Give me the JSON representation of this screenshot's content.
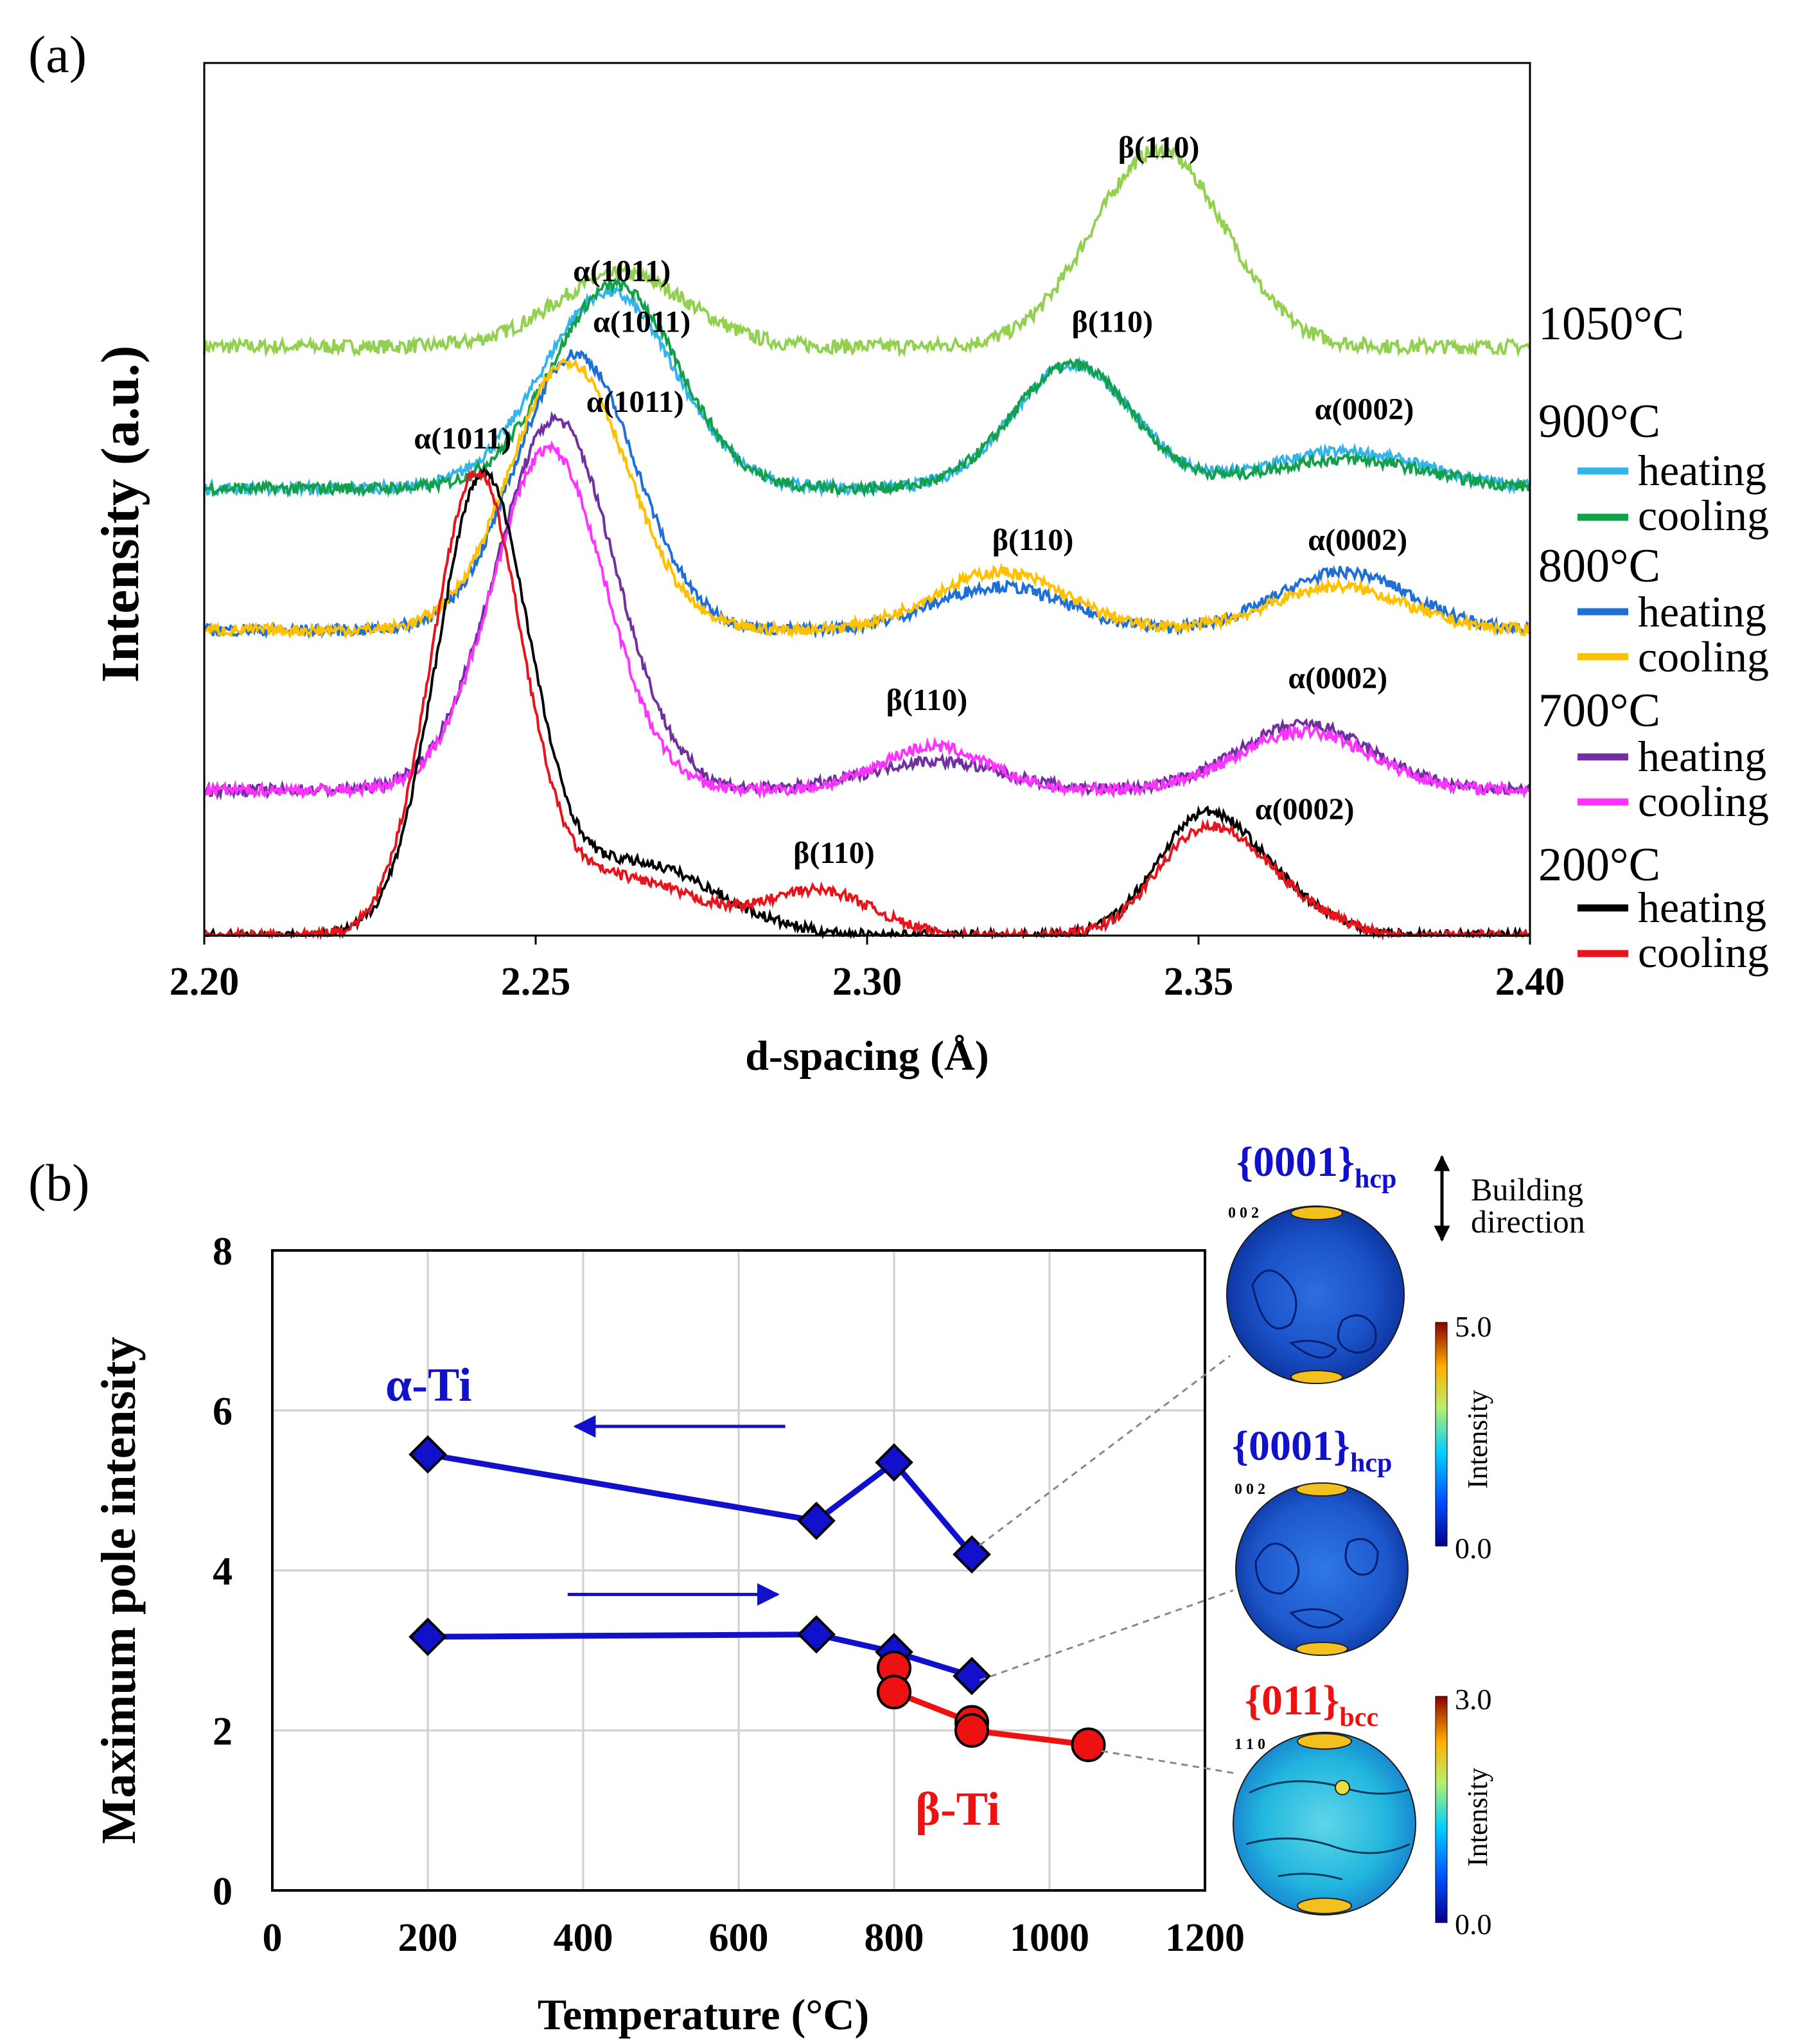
{
  "colors": {
    "h200": "#000000",
    "c200": "#e8141c",
    "h700": "#7030a0",
    "c700": "#ff33ff",
    "h800": "#1f6fd6",
    "c800": "#ffc000",
    "h900": "#33b5ea",
    "c900": "#12a04a",
    "s1050": "#92d050",
    "alpha": "#1111cc",
    "beta": "#ee1111",
    "grid": "#d0d0d0"
  },
  "chart_data": [
    {
      "type": "line",
      "panel_label": "(a)",
      "xlabel": "d-spacing (Å)",
      "ylabel": "Intensity (a.u.)",
      "xlim": [
        2.2,
        2.4
      ],
      "x_ticks": [
        "2.20",
        "2.25",
        "2.30",
        "2.35",
        "2.40"
      ],
      "x_tick_values": [
        2.2,
        2.25,
        2.3,
        2.35,
        2.4
      ],
      "ylim": [
        0,
        1.2
      ],
      "temperature_labels": [
        "1050°C",
        "900°C",
        "800°C",
        "700°C",
        "200°C"
      ],
      "legend_entries": [
        "heating",
        "cooling",
        "heating",
        "cooling",
        "heating",
        "cooling",
        "heating",
        "cooling"
      ],
      "series": [
        {
          "name": "1050°C",
          "color_key": "s1050",
          "base": 0.81,
          "noise": 0.01,
          "peaks": [
            [
              2.263,
              0.1,
              0.01
            ],
            [
              2.344,
              0.27,
              0.01
            ]
          ]
        },
        {
          "name": "900°C heating",
          "color_key": "h900",
          "base": 0.615,
          "noise": 0.008,
          "peaks": [
            [
              2.261,
              0.27,
              0.01
            ],
            [
              2.331,
              0.17,
              0.009
            ],
            [
              2.372,
              0.05,
              0.012
            ]
          ]
        },
        {
          "name": "900°C cooling",
          "color_key": "c900",
          "base": 0.615,
          "noise": 0.008,
          "peaks": [
            [
              2.262,
              0.28,
              0.0095
            ],
            [
              2.331,
              0.17,
              0.009
            ],
            [
              2.372,
              0.04,
              0.012
            ]
          ]
        },
        {
          "name": "800°C heating",
          "color_key": "h800",
          "base": 0.42,
          "noise": 0.008,
          "peaks": [
            [
              2.256,
              0.38,
              0.009
            ],
            [
              2.32,
              0.06,
              0.01
            ],
            [
              2.372,
              0.08,
              0.01
            ]
          ]
        },
        {
          "name": "800°C cooling",
          "color_key": "c800",
          "base": 0.42,
          "noise": 0.008,
          "peaks": [
            [
              2.255,
              0.37,
              0.0088
            ],
            [
              2.32,
              0.08,
              0.01
            ],
            [
              2.371,
              0.06,
              0.01
            ]
          ]
        },
        {
          "name": "700°C heating",
          "color_key": "h700",
          "base": 0.2,
          "noise": 0.008,
          "peaks": [
            [
              2.253,
              0.51,
              0.009
            ],
            [
              2.31,
              0.04,
              0.01
            ],
            [
              2.366,
              0.09,
              0.01
            ]
          ]
        },
        {
          "name": "700°C cooling",
          "color_key": "c700",
          "base": 0.2,
          "noise": 0.008,
          "peaks": [
            [
              2.252,
              0.47,
              0.0085
            ],
            [
              2.31,
              0.06,
              0.008
            ],
            [
              2.366,
              0.08,
              0.01
            ]
          ]
        },
        {
          "name": "200°C heating",
          "color_key": "h200",
          "base": 0.0,
          "noise": 0.007,
          "peaks": [
            [
              2.242,
              0.62,
              0.007
            ],
            [
              2.265,
              0.1,
              0.012
            ],
            [
              2.35,
              0.14,
              0.007
            ],
            [
              2.36,
              0.06,
              0.008
            ]
          ]
        },
        {
          "name": "200°C cooling",
          "color_key": "c200",
          "base": 0.0,
          "noise": 0.007,
          "peaks": [
            [
              2.241,
              0.62,
              0.0068
            ],
            [
              2.262,
              0.08,
              0.012
            ],
            [
              2.293,
              0.06,
              0.008
            ],
            [
              2.35,
              0.12,
              0.007
            ],
            [
              2.36,
              0.06,
              0.008
            ]
          ]
        }
      ],
      "annotations": [
        {
          "text": "β(110)",
          "x": 2.344,
          "y": 1.07
        },
        {
          "text": "α(1011)",
          "x": 2.263,
          "y": 0.9
        },
        {
          "text": "α(1011)",
          "x": 2.266,
          "y": 0.83
        },
        {
          "text": "β(110)",
          "x": 2.337,
          "y": 0.83
        },
        {
          "text": "α(0002)",
          "x": 2.375,
          "y": 0.71
        },
        {
          "text": "α(1011)",
          "x": 2.265,
          "y": 0.72
        },
        {
          "text": "α(1011)",
          "x": 2.239,
          "y": 0.67
        },
        {
          "text": "β(110)",
          "x": 2.325,
          "y": 0.53
        },
        {
          "text": "α(0002)",
          "x": 2.374,
          "y": 0.53
        },
        {
          "text": "β(110)",
          "x": 2.309,
          "y": 0.31
        },
        {
          "text": "α(0002)",
          "x": 2.371,
          "y": 0.34
        },
        {
          "text": "β(110)",
          "x": 2.295,
          "y": 0.1
        },
        {
          "text": "α(0002)",
          "x": 2.366,
          "y": 0.16
        }
      ]
    },
    {
      "type": "line",
      "panel_label": "(b)",
      "xlabel": "Temperature (°C)",
      "ylabel": "Maximum pole intensity",
      "xlim": [
        0,
        1200
      ],
      "ylim": [
        0,
        8
      ],
      "x_ticks": [
        "0",
        "200",
        "400",
        "600",
        "800",
        "1000",
        "1200"
      ],
      "y_ticks": [
        "0",
        "2",
        "4",
        "6",
        "8"
      ],
      "grid": true,
      "series": [
        {
          "name": "α-Ti upper",
          "marker": "diamond",
          "color_key": "alpha",
          "x": [
            200,
            700,
            800,
            900
          ],
          "y": [
            5.45,
            4.62,
            5.35,
            4.2
          ]
        },
        {
          "name": "α-Ti lower",
          "marker": "diamond",
          "color_key": "alpha",
          "x": [
            200,
            700,
            800,
            900
          ],
          "y": [
            3.17,
            3.2,
            2.98,
            2.68
          ]
        },
        {
          "name": "β-Ti",
          "marker": "circle",
          "color_key": "beta",
          "x": [
            800,
            800,
            900,
            900,
            1050
          ],
          "y": [
            2.78,
            2.48,
            2.1,
            2.0,
            1.82
          ]
        }
      ],
      "labels": {
        "alpha": "α-Ti",
        "beta": "β-Ti"
      },
      "arrows": [
        {
          "direction": "left",
          "x_from": 660,
          "x_to": 390,
          "y": 5.8
        },
        {
          "direction": "right",
          "x_from": 380,
          "x_to": 650,
          "y": 3.7
        }
      ]
    }
  ],
  "pole_figures": [
    {
      "title": "{0001}",
      "subscript": "hcp",
      "corner": "0 0 2",
      "cmax": "5.0",
      "cmin": "0.0",
      "cbar_label": "Intensity"
    },
    {
      "title": "{0001}",
      "subscript": "hcp",
      "corner": "0 0 2",
      "cmax": "",
      "cmin": "",
      "cbar_label": ""
    },
    {
      "title": "{011}",
      "subscript": "bcc",
      "corner": "1 1 0",
      "cmax": "3.0",
      "cmin": "0.0",
      "cbar_label": "Intensity"
    }
  ],
  "building_direction": [
    "Building",
    "direction"
  ]
}
